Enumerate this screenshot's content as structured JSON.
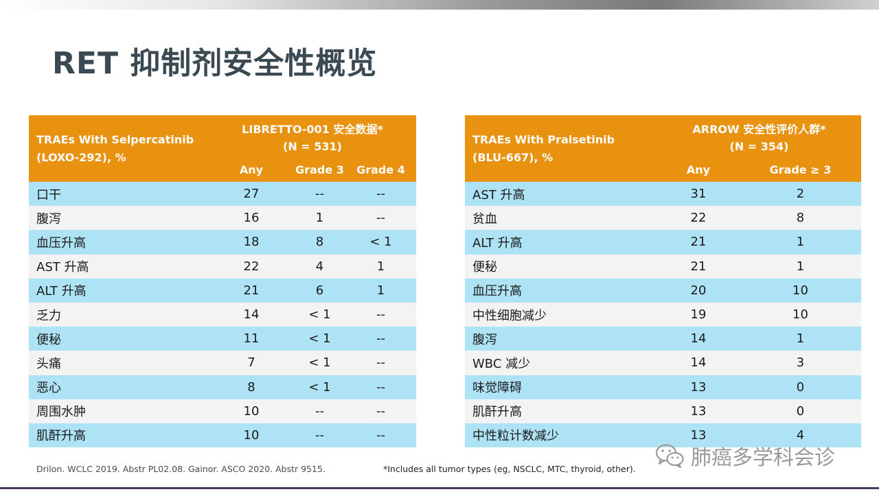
{
  "slide": {
    "title": "RET 抑制剂安全性概览"
  },
  "table_left": {
    "row_label_header": "TRAEs With Selpercatinib (LOXO-292), %",
    "group_header_line1": "LIBRETTO-001 安全数据*",
    "group_header_line2": "(N = 531)",
    "columns": [
      "Any",
      "Grade 3",
      "Grade 4"
    ],
    "rows": [
      {
        "label": "口干",
        "values": [
          "27",
          "--",
          "--"
        ]
      },
      {
        "label": "腹泻",
        "values": [
          "16",
          "1",
          "--"
        ]
      },
      {
        "label": "血压升高",
        "values": [
          "18",
          "8",
          "< 1"
        ]
      },
      {
        "label": "AST 升高",
        "values": [
          "22",
          "4",
          "1"
        ]
      },
      {
        "label": "ALT 升高",
        "values": [
          "21",
          "6",
          "1"
        ]
      },
      {
        "label": "乏力",
        "values": [
          "14",
          "< 1",
          "--"
        ]
      },
      {
        "label": "便秘",
        "values": [
          "11",
          "< 1",
          "--"
        ]
      },
      {
        "label": "头痛",
        "values": [
          "7",
          "< 1",
          "--"
        ]
      },
      {
        "label": "恶心",
        "values": [
          "8",
          "< 1",
          "--"
        ]
      },
      {
        "label": "周围水肿",
        "values": [
          "10",
          "--",
          "--"
        ]
      },
      {
        "label": "肌酐升高",
        "values": [
          "10",
          "--",
          "--"
        ]
      }
    ]
  },
  "table_right": {
    "row_label_header": "TRAEs With Pralsetinib (BLU-667), %",
    "group_header_line1": "ARROW 安全性评价人群*",
    "group_header_line2": "(N = 354)",
    "columns": [
      "Any",
      "Grade ≥ 3"
    ],
    "rows": [
      {
        "label": "AST 升高",
        "values": [
          "31",
          "2"
        ]
      },
      {
        "label": "贫血",
        "values": [
          "22",
          "8"
        ]
      },
      {
        "label": "ALT 升高",
        "values": [
          "21",
          "1"
        ]
      },
      {
        "label": "便秘",
        "values": [
          "21",
          "1"
        ]
      },
      {
        "label": "血压升高",
        "values": [
          "20",
          "10"
        ]
      },
      {
        "label": "中性细胞减少",
        "values": [
          "19",
          "10"
        ]
      },
      {
        "label": "腹泻",
        "values": [
          "14",
          "1"
        ]
      },
      {
        "label": "WBC 减少",
        "values": [
          "14",
          "3"
        ]
      },
      {
        "label": "味觉障碍",
        "values": [
          "13",
          "0"
        ]
      },
      {
        "label": "肌酐升高",
        "values": [
          "13",
          "0"
        ]
      },
      {
        "label": "中性粒计数减少",
        "values": [
          "13",
          "4"
        ]
      }
    ]
  },
  "footnotes": {
    "references": "Drilon. WCLC 2019. Abstr PL02.08. Gainor. ASCO 2020. Abstr 9515.",
    "asterisk_note": "*Includes all tumor types (eg, NSCLC, MTC, thyroid, other)."
  },
  "watermark": {
    "text": "肺癌多学科会诊",
    "icon": "wechat-icon"
  },
  "colors": {
    "header_bg": "#e8920f",
    "row_odd": "#aee3f5",
    "row_even": "#f3f3f3",
    "title": "#3b4a52"
  }
}
